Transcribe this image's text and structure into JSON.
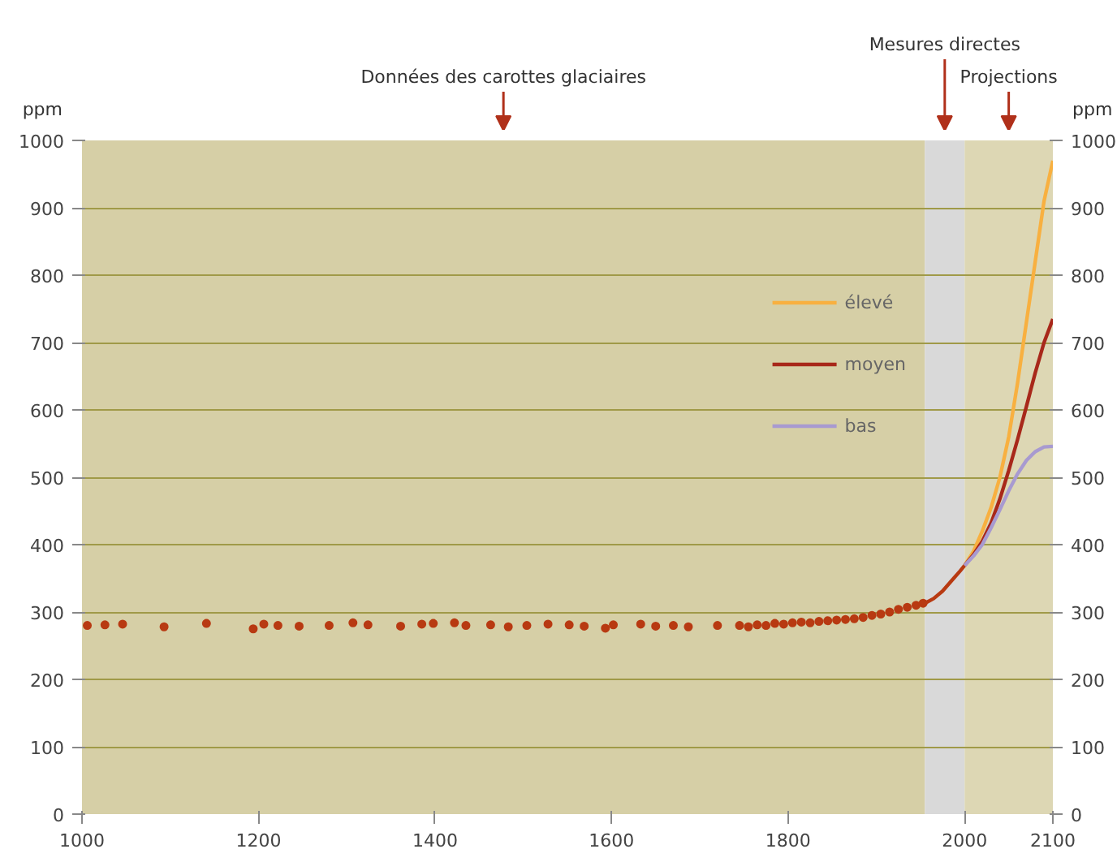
{
  "chart_data": {
    "type": "scatter",
    "xlim": [
      1000,
      2100
    ],
    "xticks": [
      1000,
      1200,
      1400,
      1600,
      1800,
      2000,
      2100
    ],
    "ylim": [
      0,
      1000
    ],
    "yticks": [
      0,
      100,
      200,
      300,
      400,
      500,
      600,
      700,
      800,
      900,
      1000
    ],
    "y2lim": [
      0,
      1000
    ],
    "y2ticks": [
      0,
      100,
      200,
      300,
      400,
      500,
      600,
      700,
      800,
      900,
      1000
    ],
    "ylabel": "ppm",
    "y2label": "ppm",
    "grid": "y",
    "legend": "top right",
    "bands": [
      {
        "axis": "x",
        "from": 1000,
        "to": 1955,
        "label": "Données des carottes glaciaires",
        "color": "#d6cfa6"
      },
      {
        "axis": "x",
        "from": 1955,
        "to": 2000,
        "label": "Mesures directes",
        "color": "#d9d9d9"
      },
      {
        "axis": "x",
        "from": 2000,
        "to": 2100,
        "label": "Projections",
        "color": "#ddd7b4"
      }
    ],
    "series": [
      {
        "marker": "circle",
        "color": "#b83a12",
        "x": [
          1006,
          1026,
          1046,
          1093,
          1141,
          1194,
          1206,
          1222,
          1246,
          1280,
          1307,
          1324,
          1361,
          1385,
          1398,
          1422,
          1435,
          1463,
          1483,
          1504,
          1528,
          1552,
          1569,
          1593,
          1602,
          1633,
          1650,
          1670,
          1687,
          1720,
          1745,
          1755,
          1765,
          1775,
          1785,
          1795,
          1805,
          1815,
          1825,
          1835,
          1845,
          1855,
          1865,
          1875,
          1885,
          1895,
          1905,
          1915,
          1925,
          1935,
          1945,
          1953
        ],
        "values": [
          280,
          281,
          282,
          278,
          283,
          275,
          282,
          280,
          279,
          280,
          284,
          281,
          279,
          282,
          283,
          284,
          280,
          281,
          278,
          280,
          282,
          281,
          279,
          276,
          281,
          282,
          279,
          280,
          278,
          280,
          280,
          278,
          281,
          280,
          283,
          282,
          284,
          285,
          284,
          286,
          287,
          288,
          289,
          290,
          292,
          295,
          297,
          300,
          304,
          307,
          310,
          313
        ]
      },
      {
        "type": "line",
        "color": "#b83a12",
        "x": [
          1955,
          1965,
          1975,
          1985,
          1995,
          2000
        ],
        "values": [
          313,
          320,
          331,
          346,
          361,
          369
        ]
      },
      {
        "type": "line",
        "name": "élevé",
        "color": "#f8b040",
        "x": [
          2000,
          2010,
          2020,
          2030,
          2040,
          2050,
          2060,
          2070,
          2080,
          2090,
          2100
        ],
        "values": [
          369,
          390,
          420,
          455,
          500,
          560,
          640,
          730,
          820,
          910,
          970
        ]
      },
      {
        "type": "line",
        "name": "moyen",
        "color": "#a8281a",
        "x": [
          2000,
          2010,
          2020,
          2030,
          2040,
          2050,
          2060,
          2070,
          2080,
          2090,
          2100
        ],
        "values": [
          369,
          385,
          405,
          432,
          468,
          510,
          556,
          605,
          655,
          700,
          735
        ]
      },
      {
        "type": "line",
        "name": "bas",
        "color": "#a89ad0",
        "x": [
          2000,
          2010,
          2020,
          2030,
          2040,
          2050,
          2060,
          2070,
          2080,
          2090,
          2100
        ],
        "values": [
          369,
          383,
          400,
          425,
          452,
          480,
          505,
          525,
          538,
          545,
          546
        ]
      }
    ]
  }
}
